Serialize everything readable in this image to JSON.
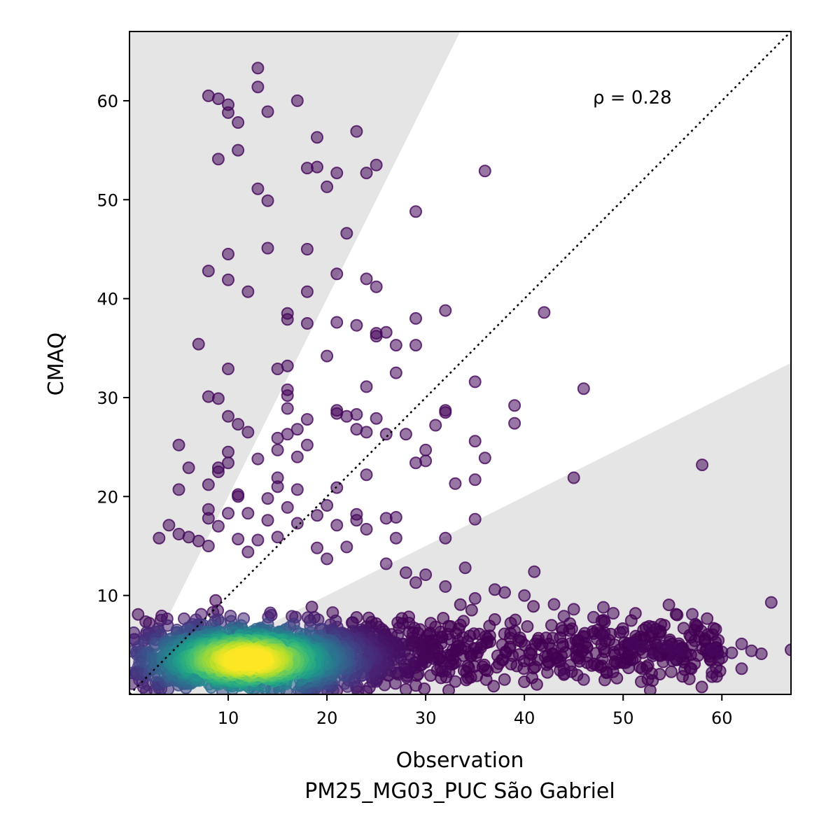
{
  "chart_data": {
    "type": "scatter",
    "xlabel": "Observation",
    "xlabel2": "PM25_MG03_PUC São Gabriel",
    "ylabel": "CMAQ",
    "xlim": [
      0,
      67
    ],
    "ylim": [
      0,
      67
    ],
    "xticks": [
      10,
      20,
      30,
      40,
      50,
      60
    ],
    "yticks": [
      10,
      20,
      30,
      40,
      50,
      60
    ],
    "annotation": "ρ = 0.28",
    "reference_line": "1:1 dotted",
    "shaded_region_factor_of_two": true,
    "grid": false,
    "point_color_scale": "viridis density",
    "points_outliers": [
      [
        13,
        63.3
      ],
      [
        8,
        60.5
      ],
      [
        9,
        60.2
      ],
      [
        10,
        59.6
      ],
      [
        10,
        58.8
      ],
      [
        14,
        58.9
      ],
      [
        11,
        57.8
      ],
      [
        17,
        60
      ],
      [
        13,
        61.4
      ],
      [
        23,
        56.9
      ],
      [
        19,
        56.3
      ],
      [
        9,
        54.1
      ],
      [
        11,
        55
      ],
      [
        18,
        53.2
      ],
      [
        19,
        53.3
      ],
      [
        21,
        52.7
      ],
      [
        24,
        52.7
      ],
      [
        25,
        53.5
      ],
      [
        20,
        51.3
      ],
      [
        13,
        51.1
      ],
      [
        14,
        49.9
      ],
      [
        36,
        52.9
      ],
      [
        29,
        48.8
      ],
      [
        22,
        46.6
      ],
      [
        10,
        44.5
      ],
      [
        14,
        45.1
      ],
      [
        18,
        45
      ],
      [
        8,
        42.8
      ],
      [
        10,
        41.9
      ],
      [
        21,
        42.5
      ],
      [
        24,
        42
      ],
      [
        25,
        41.2
      ],
      [
        12,
        40.7
      ],
      [
        18,
        40.7
      ],
      [
        16,
        38.5
      ],
      [
        16,
        37.9
      ],
      [
        18,
        37.5
      ],
      [
        21,
        37.6
      ],
      [
        23,
        37.3
      ],
      [
        25,
        36.5
      ],
      [
        26,
        36.6
      ],
      [
        25,
        36.2
      ],
      [
        29,
        38
      ],
      [
        32,
        38.8
      ],
      [
        42,
        38.6
      ],
      [
        7,
        35.4
      ],
      [
        27,
        35.3
      ],
      [
        29,
        35.3
      ],
      [
        10,
        32.9
      ],
      [
        15,
        32.9
      ],
      [
        16,
        33.2
      ],
      [
        20,
        34.2
      ],
      [
        27,
        32.5
      ],
      [
        35,
        31.6
      ],
      [
        24,
        31.1
      ],
      [
        46,
        30.9
      ],
      [
        8,
        30.1
      ],
      [
        9,
        29.9
      ],
      [
        16,
        30.8
      ],
      [
        16,
        30.2
      ],
      [
        16,
        28.9
      ],
      [
        18,
        27.8
      ],
      [
        21,
        28.7
      ],
      [
        21,
        28.4
      ],
      [
        22,
        28.1
      ],
      [
        23,
        28.3
      ],
      [
        25,
        27.9
      ],
      [
        32,
        28.7
      ],
      [
        32,
        28.5
      ],
      [
        39,
        29.2
      ],
      [
        10,
        28.1
      ],
      [
        11,
        27.3
      ],
      [
        12,
        26.5
      ],
      [
        15,
        25.9
      ],
      [
        16,
        26.3
      ],
      [
        17,
        26.8
      ],
      [
        23,
        26.8
      ],
      [
        24,
        26.5
      ],
      [
        26,
        26.3
      ],
      [
        28,
        26.3
      ],
      [
        31,
        27.2
      ],
      [
        39,
        27.4
      ],
      [
        5,
        25.2
      ],
      [
        10,
        24.5
      ],
      [
        15,
        24.7
      ],
      [
        18,
        25.2
      ],
      [
        30,
        24.7
      ],
      [
        35,
        25.6
      ],
      [
        6,
        22.9
      ],
      [
        9,
        22.9
      ],
      [
        9,
        22.5
      ],
      [
        10,
        23.4
      ],
      [
        13,
        23.8
      ],
      [
        17,
        24
      ],
      [
        29,
        23.4
      ],
      [
        30,
        23.6
      ],
      [
        36,
        23.9
      ],
      [
        58,
        23.2
      ],
      [
        5,
        20.7
      ],
      [
        8,
        21.2
      ],
      [
        15,
        21.9
      ],
      [
        15,
        21
      ],
      [
        17,
        20.7
      ],
      [
        21,
        20.9
      ],
      [
        24,
        22.2
      ],
      [
        33,
        21.3
      ],
      [
        35,
        21.7
      ],
      [
        45,
        21.9
      ],
      [
        11,
        20.2
      ],
      [
        11,
        20
      ],
      [
        14,
        19.8
      ],
      [
        16,
        18.9
      ],
      [
        20,
        19.1
      ],
      [
        19,
        18.1
      ],
      [
        8,
        18.7
      ],
      [
        8,
        17.8
      ],
      [
        10,
        18.3
      ],
      [
        12,
        18.3
      ],
      [
        23,
        18.2
      ],
      [
        23,
        17.6
      ],
      [
        26,
        17.8
      ],
      [
        27,
        17.9
      ],
      [
        35,
        17.7
      ],
      [
        4,
        17.1
      ],
      [
        9,
        17
      ],
      [
        14,
        17.6
      ],
      [
        17,
        17.3
      ],
      [
        21,
        17.1
      ],
      [
        24,
        16.7
      ],
      [
        3,
        15.8
      ],
      [
        5,
        16.2
      ],
      [
        6,
        15.9
      ],
      [
        7,
        15.5
      ],
      [
        11,
        15.7
      ],
      [
        13,
        15.6
      ],
      [
        15,
        15.9
      ],
      [
        27,
        15.8
      ],
      [
        32,
        15.8
      ],
      [
        8,
        15
      ],
      [
        12,
        14.4
      ],
      [
        19,
        14.8
      ],
      [
        22,
        14.9
      ],
      [
        2,
        7.2
      ],
      [
        20,
        13.7
      ],
      [
        26,
        13.2
      ],
      [
        34,
        12.8
      ],
      [
        41,
        12.4
      ],
      [
        28,
        12.3
      ],
      [
        30,
        12.1
      ],
      [
        29,
        11.3
      ],
      [
        32,
        10.9
      ],
      [
        37,
        10.6
      ],
      [
        38,
        10.3
      ],
      [
        40,
        10
      ],
      [
        35,
        9.7
      ],
      [
        43,
        9.1
      ],
      [
        45,
        8.6
      ],
      [
        48,
        8.8
      ],
      [
        49,
        8.2
      ],
      [
        44,
        7.9
      ],
      [
        47,
        7.8
      ],
      [
        57,
        8.1
      ],
      [
        65,
        9.3
      ],
      [
        53,
        6.8
      ],
      [
        50,
        6.3
      ],
      [
        48,
        5.9
      ],
      [
        51,
        5.1
      ],
      [
        52,
        4.8
      ],
      [
        54,
        4.9
      ],
      [
        55,
        4.6
      ],
      [
        56,
        4.4
      ],
      [
        59,
        4.5
      ],
      [
        60,
        4.3
      ],
      [
        61,
        4.2
      ],
      [
        62,
        5.1
      ],
      [
        63,
        4.4
      ],
      [
        64,
        4.1
      ],
      [
        67,
        4.5
      ],
      [
        59,
        2.2
      ],
      [
        59,
        1.8
      ],
      [
        62,
        2.6
      ],
      [
        60,
        3.7
      ],
      [
        55,
        3.4
      ],
      [
        53,
        3.9
      ],
      [
        44,
        2.6
      ],
      [
        44,
        2
      ],
      [
        46,
        1.5
      ],
      [
        33,
        1.3
      ],
      [
        32,
        2.4
      ],
      [
        29,
        0.9
      ],
      [
        28,
        0.5
      ],
      [
        21,
        0.4
      ],
      [
        24,
        0.3
      ]
    ]
  }
}
